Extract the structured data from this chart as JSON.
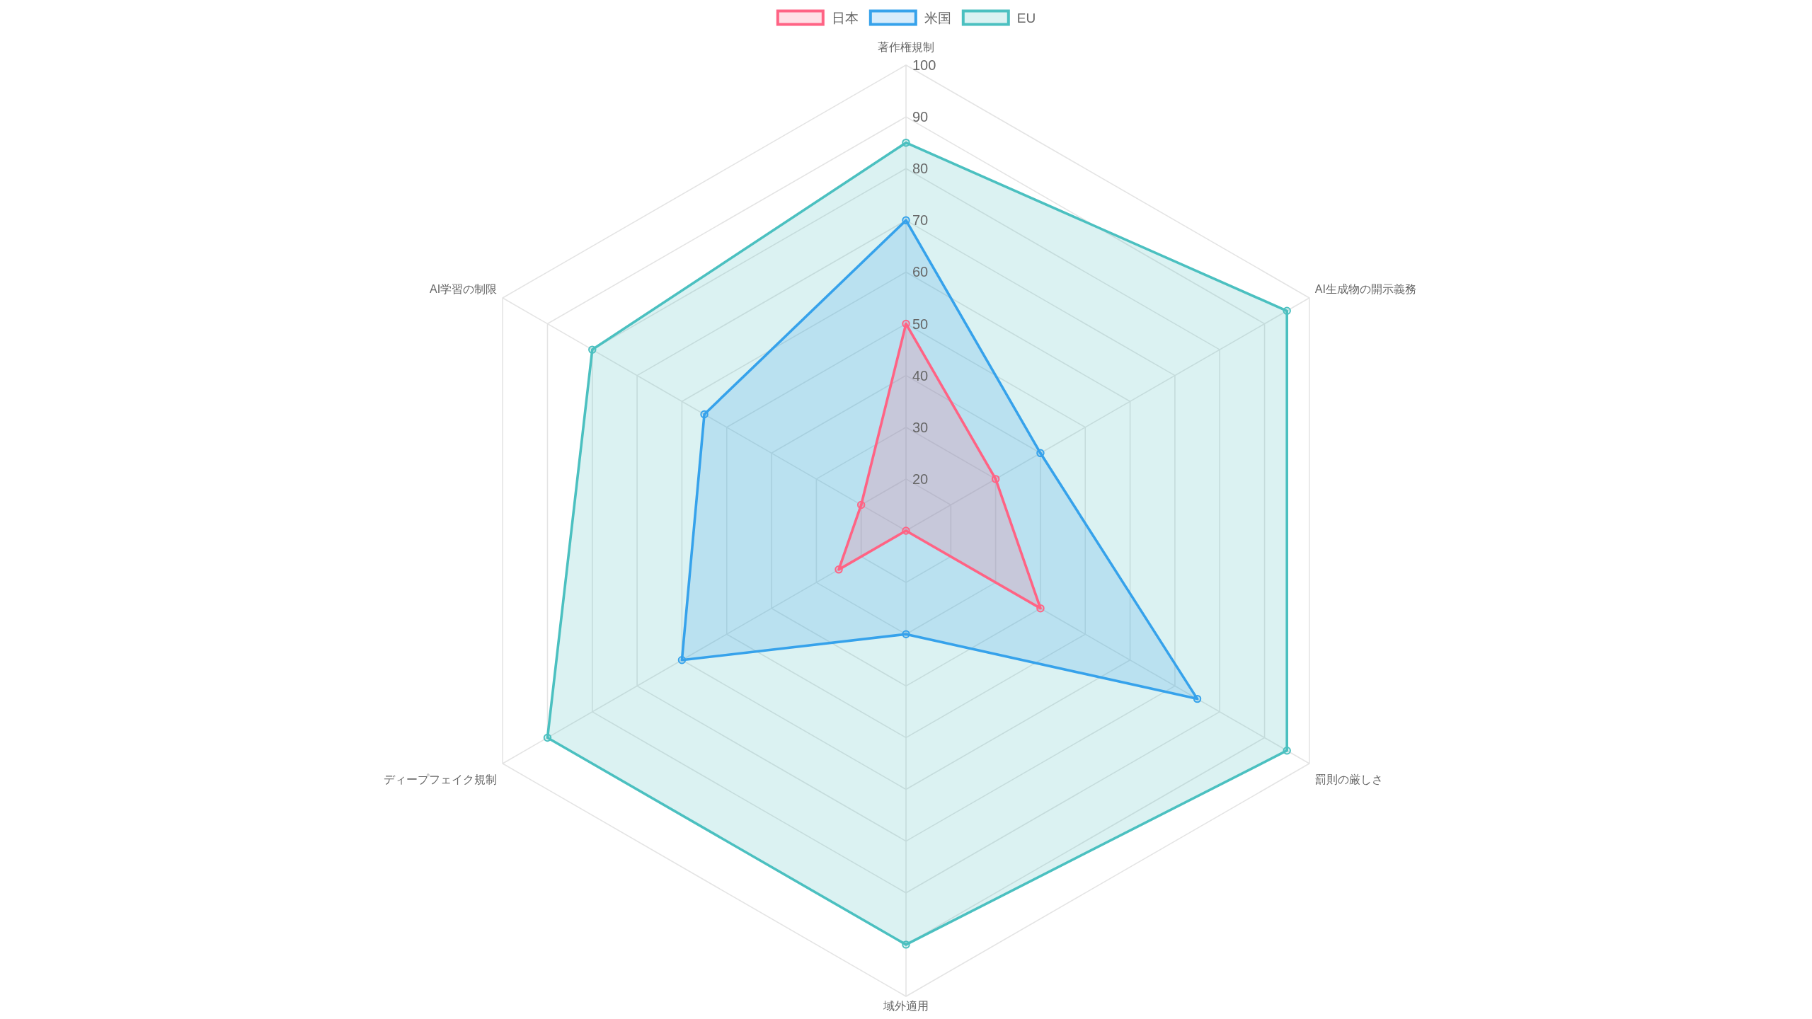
{
  "chart_data": {
    "type": "radar",
    "categories": [
      "著作権規制",
      "AI生成物の開示義務",
      "罰則の厳しさ",
      "域外適用",
      "ディープフェイク規制",
      "AI学習の制限"
    ],
    "series": [
      {
        "name": "日本",
        "color": "#ff6384",
        "values": [
          50,
          30,
          40,
          10,
          25,
          20
        ]
      },
      {
        "name": "米国",
        "color": "#36a2eb",
        "values": [
          70,
          40,
          75,
          30,
          60,
          55
        ]
      },
      {
        "name": "EU",
        "color": "#4bc0c0",
        "values": [
          85,
          95,
          95,
          90,
          90,
          80
        ]
      }
    ],
    "ylim": [
      10,
      100
    ],
    "yticks": [
      20,
      30,
      40,
      50,
      60,
      70,
      80,
      90,
      100
    ],
    "grid": true,
    "legend": "top",
    "marker": "circle"
  }
}
